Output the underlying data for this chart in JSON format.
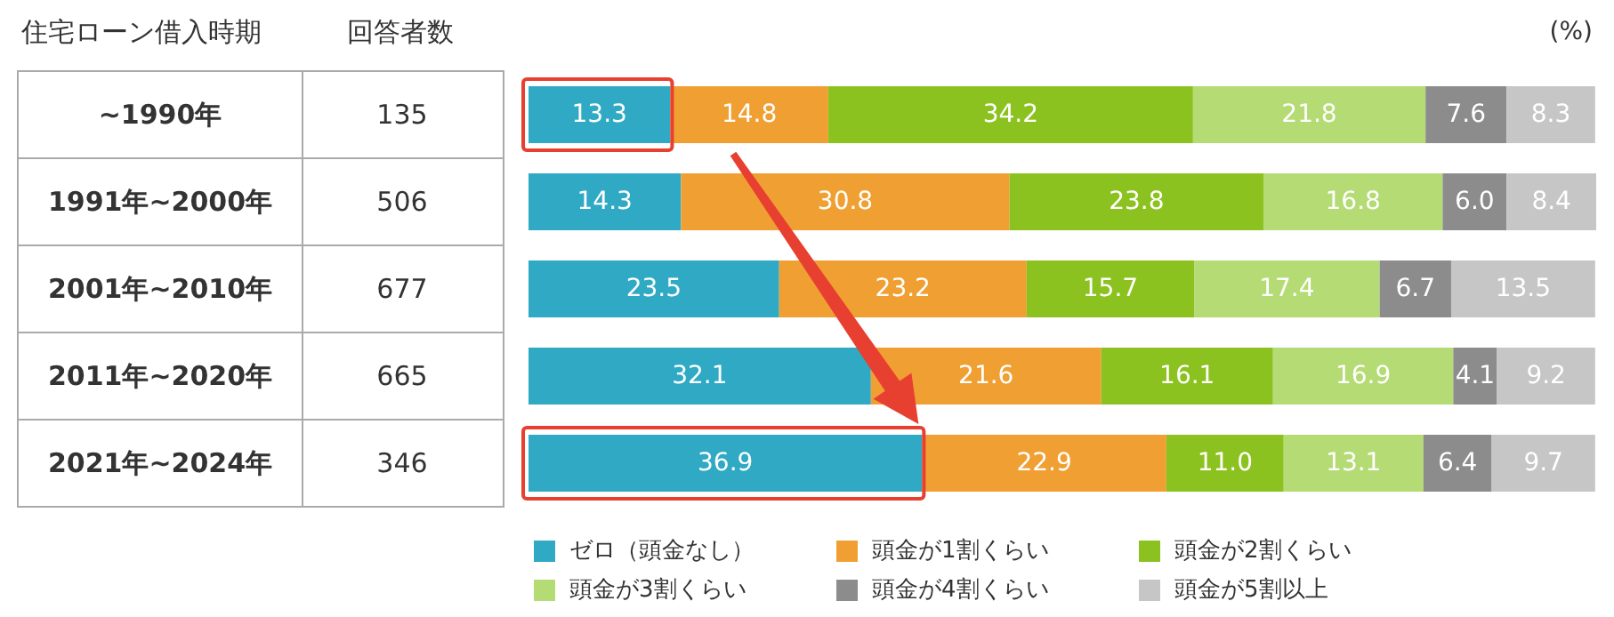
{
  "chart_data": {
    "type": "bar",
    "orientation": "horizontal",
    "stacked": true,
    "legend": "bottom",
    "ylabel": "住宅ローン借入時期",
    "xlabel": "(%)",
    "categories": [
      "~1990年",
      "1991年~2000年",
      "2001年~2010年",
      "2011年~2020年",
      "2021年~2024年"
    ],
    "annotations": [
      "回答者数",
      "135",
      "506",
      "677",
      "665",
      "346"
    ],
    "series": [
      {
        "name": "ゼロ（頭金なし）",
        "color": "#2fa9c4",
        "values": [
          13.3,
          14.3,
          23.5,
          32.1,
          36.9
        ],
        "value_labels": [
          "13.3",
          "14.3",
          "23.5",
          "32.1",
          "36.9"
        ]
      },
      {
        "name": "頭金が1割くらい",
        "color": "#f0a033",
        "values": [
          14.8,
          30.8,
          23.2,
          21.6,
          22.9
        ],
        "value_labels": [
          "14.8",
          "30.8",
          "23.2",
          "21.6",
          "22.9"
        ]
      },
      {
        "name": "頭金が2割くらい",
        "color": "#8cc21f",
        "values": [
          34.2,
          23.8,
          15.7,
          16.1,
          11.0
        ],
        "value_labels": [
          "34.2",
          "23.8",
          "15.7",
          "16.1",
          "11.0"
        ]
      },
      {
        "name": "頭金が3割くらい",
        "color": "#b5db74",
        "values": [
          21.8,
          16.8,
          17.4,
          16.9,
          13.1
        ],
        "value_labels": [
          "21.8",
          "16.8",
          "17.4",
          "16.9",
          "13.1"
        ]
      },
      {
        "name": "頭金が4割くらい",
        "color": "#8c8c8c",
        "values": [
          7.6,
          6.0,
          6.7,
          4.1,
          6.4
        ],
        "value_labels": [
          "7.6",
          "6.0",
          "6.7",
          "4.1",
          "6.4"
        ]
      },
      {
        "name": "頭金が5割以上",
        "color": "#c6c6c6",
        "values": [
          8.3,
          8.4,
          13.5,
          9.2,
          9.7
        ],
        "value_labels": [
          "8.3",
          "8.4",
          "13.5",
          "9.2",
          "9.7"
        ]
      }
    ]
  }
}
